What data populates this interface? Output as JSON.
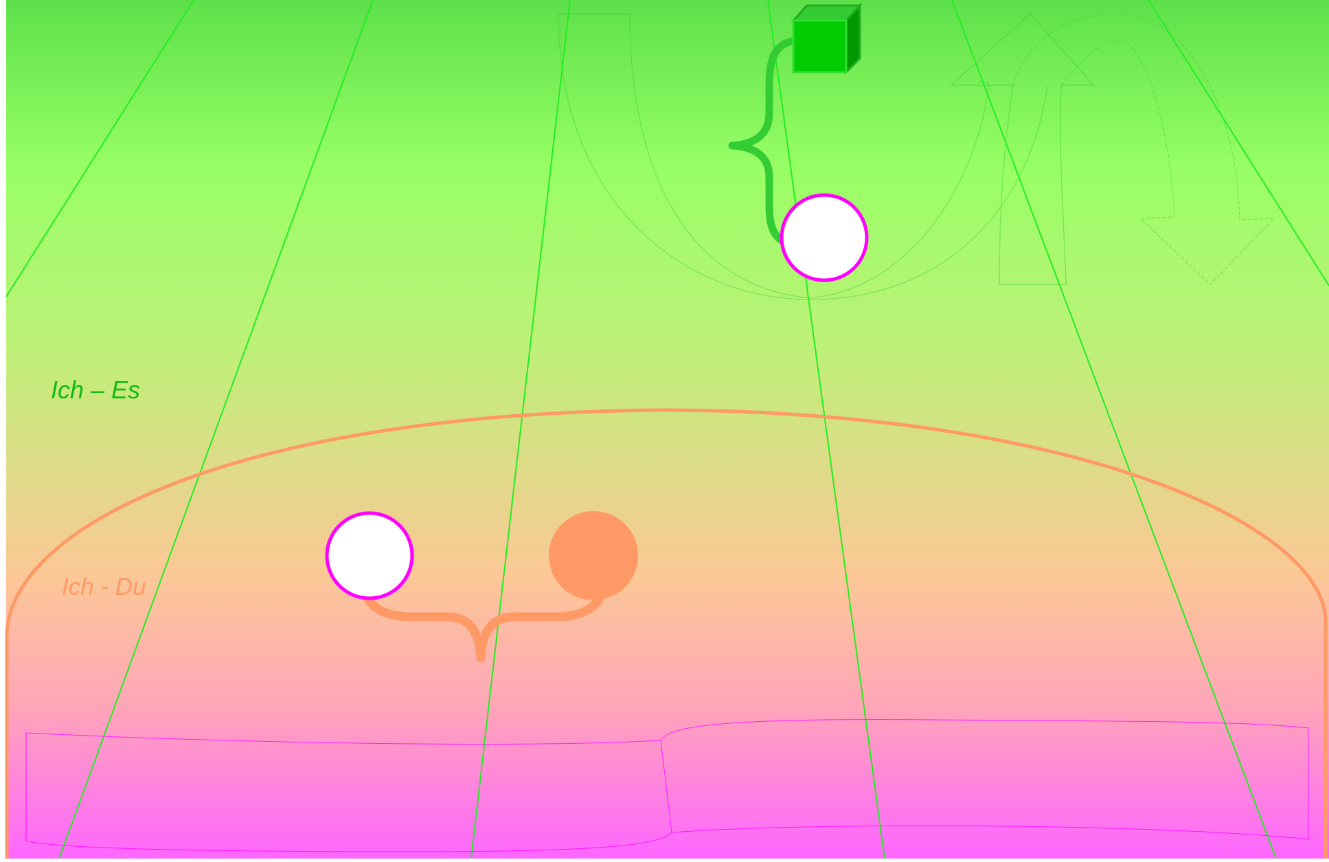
{
  "labels": {
    "ich_es": "Ich – Es",
    "ich_du": "Ich - Du"
  },
  "colors": {
    "top_green": "#5de04a",
    "light_green": "#99ff66",
    "yellow_green": "#bdf178",
    "peach": "#fbc896",
    "pink": "#ffa6b8",
    "magenta": "#ff66ff",
    "line_green": "#22ee22",
    "brace_green": "#33cc33",
    "cube_green": "#00cc00",
    "orange": "#ff9966",
    "circle_stroke": "#ff00ff",
    "ich_es_text": "#11bb11",
    "ich_du_text": "#ff9966"
  },
  "icons": {
    "cube": "cube-icon",
    "brace_vertical": "curly-brace-icon",
    "brace_horizontal": "curly-brace-icon",
    "u_turn_arrow": "u-turn-arrow-icon",
    "up_down_arrow": "curved-arrow-icon",
    "scroll_banner": "scroll-banner-icon"
  }
}
